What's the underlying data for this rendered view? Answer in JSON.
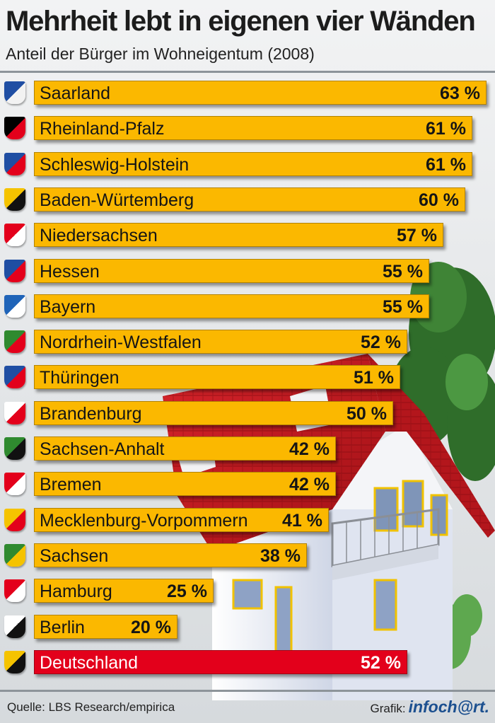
{
  "title": "Mehrheit lebt in eigenen vier Wänden",
  "subtitle": "Anteil der Bürger im Wohneigentum (2008)",
  "source": "Quelle: LBS Research/empirica",
  "credit_label": "Grafik:",
  "credit_brand": "infoch@rt.",
  "colors": {
    "bar": "#fbb800",
    "total_bar": "#e3001b",
    "text": "#151515"
  },
  "chart_data": {
    "type": "bar",
    "orientation": "horizontal",
    "title": "Mehrheit lebt in eigenen vier Wänden",
    "subtitle": "Anteil der Bürger im Wohneigentum (2008)",
    "unit": "%",
    "xlim": [
      0,
      63
    ],
    "categories": [
      "Saarland",
      "Rheinland-Pfalz",
      "Schleswig-Holstein",
      "Baden-Würtemberg",
      "Niedersachsen",
      "Hessen",
      "Bayern",
      "Nordrhein-Westfalen",
      "Thüringen",
      "Brandenburg",
      "Sachsen-Anhalt",
      "Bremen",
      "Mecklenburg-Vorpommern",
      "Sachsen",
      "Hamburg",
      "Berlin",
      "Deutschland"
    ],
    "values": [
      63,
      61,
      61,
      60,
      57,
      55,
      55,
      52,
      51,
      50,
      42,
      42,
      41,
      38,
      25,
      20,
      52
    ],
    "value_labels": [
      "63 %",
      "61 %",
      "61 %",
      "60 %",
      "57 %",
      "55 %",
      "55 %",
      "52 %",
      "51 %",
      "50 %",
      "42 %",
      "42 %",
      "41 %",
      "38 %",
      "25 %",
      "20 %",
      "52 %"
    ],
    "highlight": "Deutschland"
  }
}
